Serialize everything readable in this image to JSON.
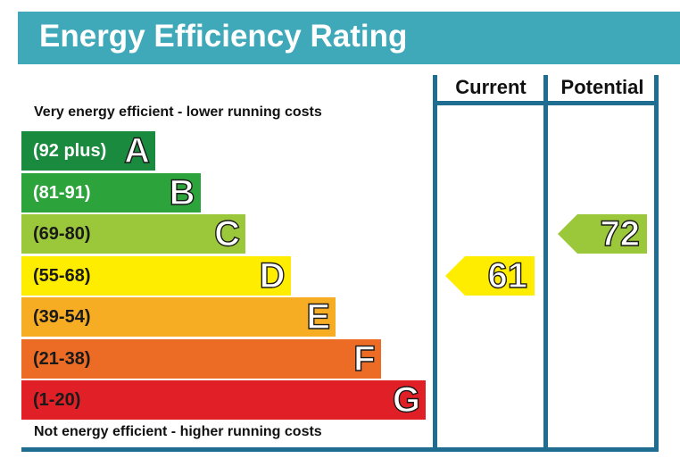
{
  "header": {
    "title": "Energy Efficiency Rating",
    "color": "#3fa8b9"
  },
  "captions": {
    "top": "Very energy efficient - lower running costs",
    "bottom": "Not energy efficient - higher running costs"
  },
  "columns": {
    "current": "Current",
    "potential": "Potential"
  },
  "chart_data": {
    "type": "bar",
    "title": "Energy Efficiency Rating",
    "bands": [
      {
        "letter": "A",
        "range": "(92 plus)",
        "min": 92,
        "max": 100,
        "color": "#1a8a3e",
        "text_color": "#ffffff"
      },
      {
        "letter": "B",
        "range": "(81-91)",
        "min": 81,
        "max": 91,
        "color": "#2ca33b",
        "text_color": "#ffffff"
      },
      {
        "letter": "C",
        "range": "(69-80)",
        "min": 69,
        "max": 80,
        "color": "#9bc83b",
        "text_color": "#1a1a1a"
      },
      {
        "letter": "D",
        "range": "(55-68)",
        "min": 55,
        "max": 68,
        "color": "#ffed00",
        "text_color": "#1a1a1a"
      },
      {
        "letter": "E",
        "range": "(39-54)",
        "min": 39,
        "max": 54,
        "color": "#f6ad24",
        "text_color": "#1a1a1a"
      },
      {
        "letter": "F",
        "range": "(21-38)",
        "min": 21,
        "max": 38,
        "color": "#ec6b25",
        "text_color": "#1a1a1a"
      },
      {
        "letter": "G",
        "range": "(1-20)",
        "min": 1,
        "max": 20,
        "color": "#e01f26",
        "text_color": "#1a1a1a"
      }
    ],
    "current": {
      "value": 61,
      "band": "D",
      "color": "#ffed00"
    },
    "potential": {
      "value": 72,
      "band": "C",
      "color": "#9bc83b"
    }
  }
}
